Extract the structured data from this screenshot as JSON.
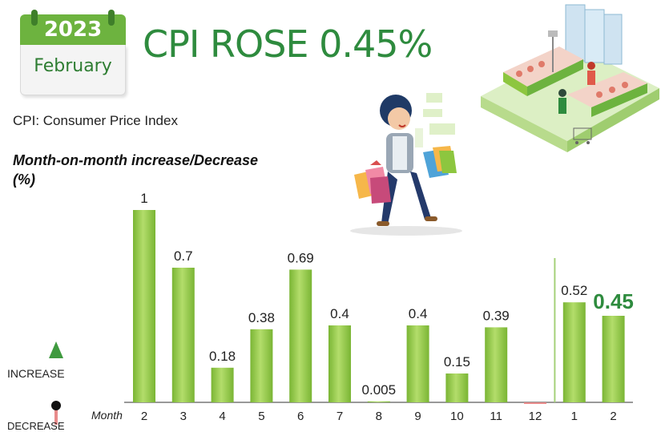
{
  "calendar": {
    "year": "2023",
    "month": "February"
  },
  "title": "CPI ROSE 0.45%",
  "definition": "CPI: Consumer Price Index",
  "y_axis_title_line1": "Month-on-month increase/Decrease",
  "y_axis_title_line2": "(%)",
  "increase_label": "INCREASE",
  "decrease_label": "DECREASE",
  "month_axis_label": "Month",
  "colors": {
    "bar": "#8dc63f",
    "bar_highlight": "#2e8b3e",
    "negative_bar": "#e88a8a",
    "arrow": "#3f9a3f",
    "divider": "#a5d17a"
  },
  "chart_data": {
    "type": "bar",
    "categories": [
      "2",
      "3",
      "4",
      "5",
      "6",
      "7",
      "8",
      "9",
      "10",
      "11",
      "12",
      "1",
      "2"
    ],
    "values": [
      1,
      0.7,
      0.18,
      0.38,
      0.69,
      0.4,
      0.005,
      0.4,
      0.15,
      0.39,
      -0.01,
      0.52,
      0.45
    ],
    "data_labels": [
      "1",
      "0.7",
      "0.18",
      "0.38",
      "0.69",
      "0.4",
      "0.005",
      "0.4",
      "0.15",
      "0.39",
      "",
      "0.52",
      "0.45"
    ],
    "highlight_index": 12,
    "divider_between": [
      10,
      11
    ],
    "xlabel": "Month",
    "ylabel": "Month-on-month increase/Decrease (%)",
    "grid": false
  }
}
